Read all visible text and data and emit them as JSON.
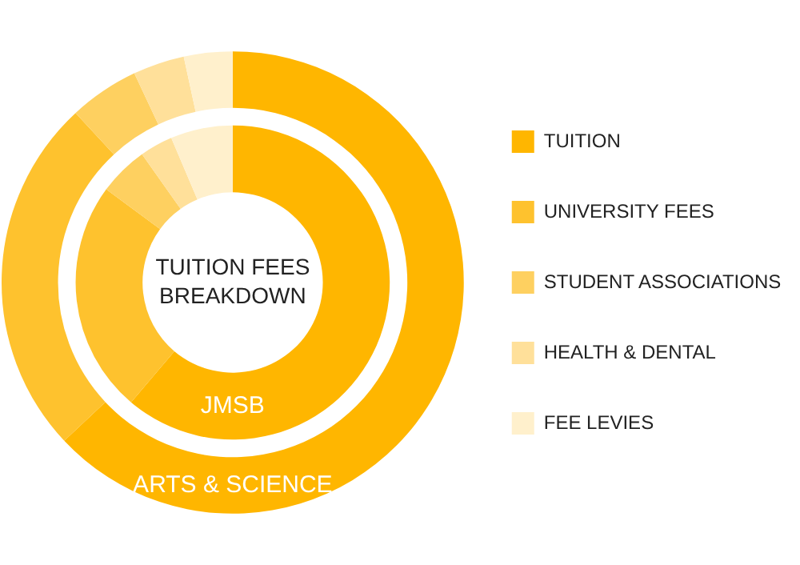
{
  "chart_data": {
    "type": "donut",
    "title": "TUITION FEES BREAKDOWN",
    "categories": [
      "TUITION",
      "UNIVERSITY FEES",
      "STUDENT ASSOCIATIONS",
      "HEALTH & DENTAL",
      "FEE LEVIES"
    ],
    "colors": [
      "#ffb600",
      "#fec22e",
      "#fed060",
      "#ffe09a",
      "#fff0cc"
    ],
    "series": [
      {
        "name": "ARTS & SCIENCE",
        "values": [
          63.0,
          25.1,
          4.9,
          3.6,
          3.4
        ]
      },
      {
        "name": "JMSB",
        "values": [
          61.2,
          23.9,
          5.1,
          3.4,
          6.4
        ]
      }
    ],
    "legend": "right"
  }
}
